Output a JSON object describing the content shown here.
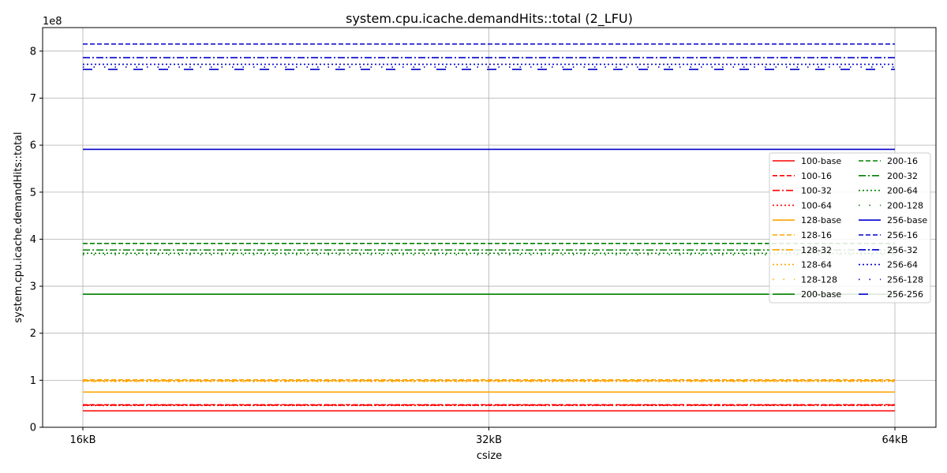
{
  "chart_data": {
    "type": "line",
    "title": "system.cpu.icache.demandHits::total (2_LFU)",
    "xlabel": "csize",
    "ylabel": "system.cpu.icache.demandHits::total",
    "y_multiplier": "1e8",
    "categories": [
      "16kB",
      "32kB",
      "64kB"
    ],
    "ylim": [
      0,
      850000000
    ],
    "yticks": [
      0,
      100000000,
      200000000,
      300000000,
      400000000,
      500000000,
      600000000,
      700000000,
      800000000
    ],
    "ytick_labels": [
      "0",
      "1",
      "2",
      "3",
      "4",
      "5",
      "6",
      "7",
      "8"
    ],
    "grid": true,
    "legend_position": "center-right",
    "legend_columns": 2,
    "series": [
      {
        "name": "100-base",
        "color": "#ff0000",
        "style": "solid",
        "values": [
          35000000,
          35000000,
          35000000
        ]
      },
      {
        "name": "100-16",
        "color": "#ff0000",
        "style": "dashed",
        "values": [
          48000000,
          48000000,
          48000000
        ]
      },
      {
        "name": "100-32",
        "color": "#ff0000",
        "style": "dashdot",
        "values": [
          47000000,
          47000000,
          47000000
        ]
      },
      {
        "name": "100-64",
        "color": "#ff0000",
        "style": "dotted",
        "values": [
          46500000,
          46500000,
          46500000
        ]
      },
      {
        "name": "128-base",
        "color": "#ffa500",
        "style": "solid",
        "values": [
          75000000,
          75000000,
          75000000
        ]
      },
      {
        "name": "128-16",
        "color": "#ffa500",
        "style": "dashed",
        "values": [
          101000000,
          101000000,
          101000000
        ]
      },
      {
        "name": "128-32",
        "color": "#ffa500",
        "style": "dashdot",
        "values": [
          99000000,
          99000000,
          99000000
        ]
      },
      {
        "name": "128-64",
        "color": "#ffa500",
        "style": "dotted",
        "values": [
          98000000,
          98000000,
          98000000
        ]
      },
      {
        "name": "128-128",
        "color": "#ffa500",
        "style": "sparse-dot",
        "values": [
          97000000,
          97000000,
          97000000
        ]
      },
      {
        "name": "200-base",
        "color": "#008000",
        "style": "solid",
        "values": [
          283000000,
          283000000,
          283000000
        ]
      },
      {
        "name": "200-16",
        "color": "#008000",
        "style": "dashed",
        "values": [
          391000000,
          391000000,
          391000000
        ]
      },
      {
        "name": "200-32",
        "color": "#008000",
        "style": "dashdot",
        "values": [
          377000000,
          377000000,
          377000000
        ]
      },
      {
        "name": "200-64",
        "color": "#008000",
        "style": "dotted",
        "values": [
          370000000,
          370000000,
          370000000
        ]
      },
      {
        "name": "200-128",
        "color": "#008000",
        "style": "sparse-dot",
        "values": [
          367000000,
          367000000,
          367000000
        ]
      },
      {
        "name": "256-base",
        "color": "#0000cc",
        "style": "solid",
        "values": [
          591000000,
          591000000,
          591000000
        ]
      },
      {
        "name": "256-16",
        "color": "#0000cc",
        "style": "dashed",
        "values": [
          815000000,
          815000000,
          815000000
        ]
      },
      {
        "name": "256-32",
        "color": "#0000cc",
        "style": "dashdot",
        "values": [
          786000000,
          786000000,
          786000000
        ]
      },
      {
        "name": "256-64",
        "color": "#0000cc",
        "style": "dotted",
        "values": [
          772000000,
          772000000,
          772000000
        ]
      },
      {
        "name": "256-128",
        "color": "#0000cc",
        "style": "sparse-dot",
        "values": [
          766000000,
          766000000,
          766000000
        ]
      },
      {
        "name": "256-256",
        "color": "#0000cc",
        "style": "long-dash",
        "values": [
          761000000,
          761000000,
          761000000
        ]
      }
    ]
  }
}
